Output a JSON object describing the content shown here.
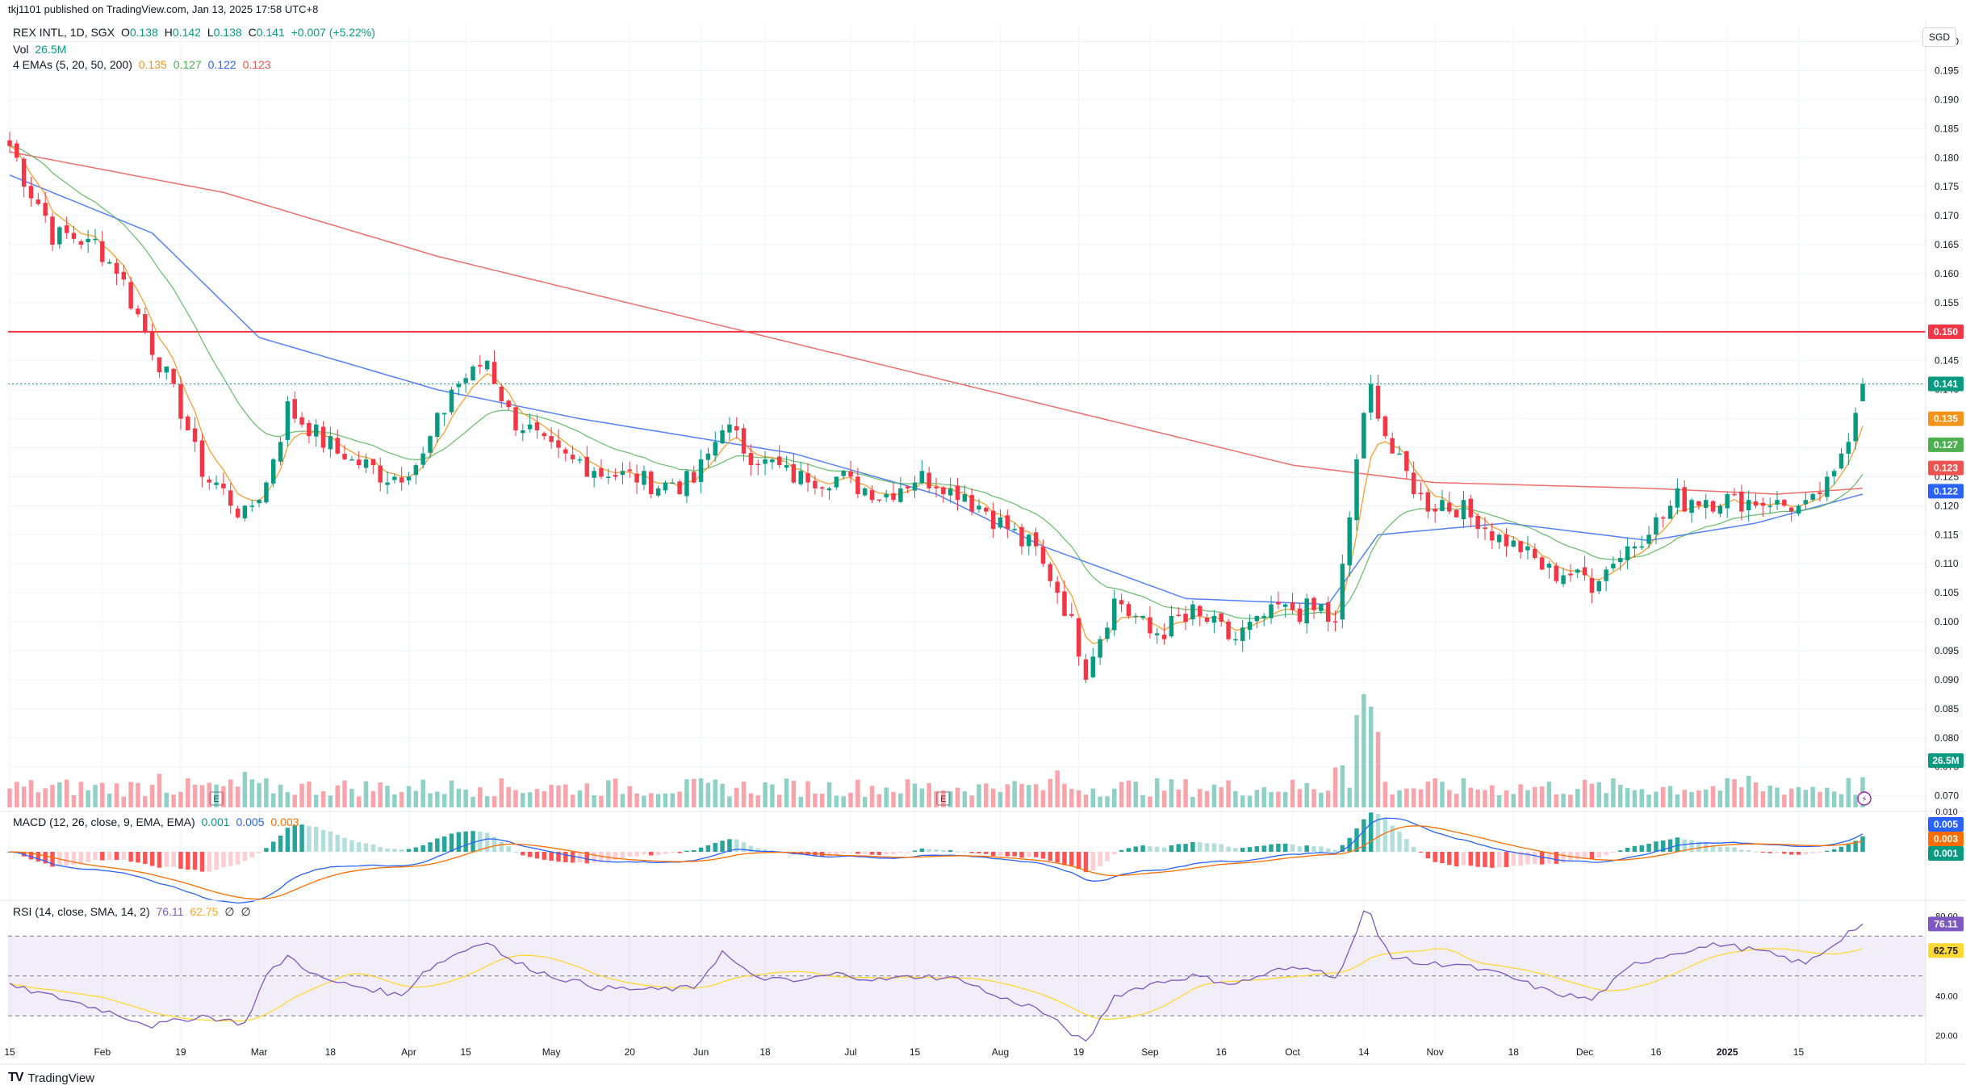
{
  "header": {
    "published": "tkj1101 published on TradingView.com, Jan 13, 2025 17:58 UTC+8",
    "symbol": "REX INTL, 1D, SGX",
    "o_label": "O",
    "o_value": "0.138",
    "h_label": "H",
    "h_value": "0.142",
    "l_label": "L",
    "l_value": "0.138",
    "c_label": "C",
    "c_value": "0.141",
    "change": "+0.007 (+5.22%)",
    "vol_label": "Vol",
    "vol_value": "26.5M",
    "ema_label": "4 EMAs (5, 20, 50, 200)",
    "ema_values": [
      "0.135",
      "0.127",
      "0.122",
      "0.123"
    ]
  },
  "currency": "SGD",
  "macd_title": "MACD (12, 26, close, 9, EMA, EMA)",
  "macd_values": [
    "0.001",
    "0.005",
    "0.003"
  ],
  "rsi_title": "RSI (14, close, SMA, 14, 2)",
  "rsi_values": [
    "76.11",
    "62.75",
    "∅",
    "∅"
  ],
  "footer": {
    "logo": "TV",
    "brand": "TradingView"
  },
  "colors": {
    "up": "#089981",
    "down": "#f23645",
    "ema5": "#f7931a",
    "ema20": "#4caf50",
    "ema50": "#2962ff",
    "ema200": "#ef5350",
    "rsi": "#7e57c2",
    "rsi_ma": "#fdd835",
    "hline": "#f23645"
  },
  "chart_data": [
    {
      "type": "candlestick",
      "title": "REX INTL, 1D, SGX",
      "ylim": [
        0.068,
        0.203
      ],
      "y_ticks": [
        "0.070",
        "0.075",
        "0.080",
        "0.085",
        "0.090",
        "0.095",
        "0.100",
        "0.105",
        "0.110",
        "0.115",
        "0.120",
        "0.125",
        "0.130",
        "0.135",
        "0.140",
        "0.145",
        "0.150",
        "0.155",
        "0.160",
        "0.165",
        "0.170",
        "0.175",
        "0.180",
        "0.185",
        "0.190",
        "0.195",
        "0.200"
      ],
      "x_ticks": [
        "15",
        "Feb",
        "19",
        "Mar",
        "18",
        "Apr",
        "15",
        "May",
        "20",
        "Jun",
        "18",
        "Jul",
        "15",
        "Aug",
        "19",
        "Sep",
        "16",
        "Oct",
        "14",
        "Nov",
        "18",
        "Dec",
        "16",
        "2025",
        "15"
      ],
      "horizontal_line": 0.15,
      "last_close_dotted": 0.141,
      "price_badges": [
        {
          "label": "0.150",
          "color": "#f23645"
        },
        {
          "label": "0.141",
          "color": "#089981"
        },
        {
          "label": "0.135",
          "color": "#f7931a"
        },
        {
          "label": "0.127",
          "color": "#4caf50"
        },
        {
          "label": "0.123",
          "color": "#ef5350"
        },
        {
          "label": "0.122",
          "color": "#2962ff"
        },
        {
          "label": "26.5M",
          "color": "#089981"
        }
      ],
      "close_anchors": [
        [
          0,
          0.182
        ],
        [
          6,
          0.167
        ],
        [
          12,
          0.165
        ],
        [
          15,
          0.161
        ],
        [
          20,
          0.147
        ],
        [
          24,
          0.137
        ],
        [
          27,
          0.126
        ],
        [
          33,
          0.118
        ],
        [
          36,
          0.124
        ],
        [
          39,
          0.137
        ],
        [
          44,
          0.131
        ],
        [
          49,
          0.127
        ],
        [
          54,
          0.125
        ],
        [
          58,
          0.128
        ],
        [
          62,
          0.14
        ],
        [
          67,
          0.145
        ],
        [
          70,
          0.136
        ],
        [
          76,
          0.129
        ],
        [
          83,
          0.126
        ],
        [
          90,
          0.124
        ],
        [
          96,
          0.124
        ],
        [
          100,
          0.134
        ],
        [
          104,
          0.129
        ],
        [
          110,
          0.125
        ],
        [
          116,
          0.125
        ],
        [
          122,
          0.122
        ],
        [
          128,
          0.125
        ],
        [
          134,
          0.122
        ],
        [
          138,
          0.118
        ],
        [
          144,
          0.112
        ],
        [
          148,
          0.103
        ],
        [
          151,
          0.092
        ],
        [
          155,
          0.104
        ],
        [
          160,
          0.098
        ],
        [
          166,
          0.101
        ],
        [
          172,
          0.097
        ],
        [
          178,
          0.102
        ],
        [
          184,
          0.102
        ],
        [
          186,
          0.099
        ],
        [
          189,
          0.128
        ],
        [
          191,
          0.14
        ],
        [
          194,
          0.129
        ],
        [
          198,
          0.121
        ],
        [
          203,
          0.12
        ],
        [
          210,
          0.114
        ],
        [
          216,
          0.109
        ],
        [
          222,
          0.107
        ],
        [
          228,
          0.114
        ],
        [
          234,
          0.121
        ],
        [
          240,
          0.121
        ],
        [
          246,
          0.121
        ],
        [
          252,
          0.119
        ],
        [
          256,
          0.125
        ],
        [
          258,
          0.133
        ],
        [
          260,
          0.141
        ]
      ],
      "ema200_anchors": [
        [
          0,
          0.181
        ],
        [
          30,
          0.174
        ],
        [
          60,
          0.163
        ],
        [
          100,
          0.151
        ],
        [
          140,
          0.139
        ],
        [
          180,
          0.127
        ],
        [
          200,
          0.124
        ],
        [
          230,
          0.123
        ],
        [
          248,
          0.122
        ],
        [
          260,
          0.123
        ]
      ],
      "ema50_anchors": [
        [
          0,
          0.177
        ],
        [
          20,
          0.167
        ],
        [
          35,
          0.149
        ],
        [
          60,
          0.14
        ],
        [
          80,
          0.135
        ],
        [
          110,
          0.129
        ],
        [
          130,
          0.122
        ],
        [
          145,
          0.113
        ],
        [
          165,
          0.104
        ],
        [
          185,
          0.103
        ],
        [
          192,
          0.115
        ],
        [
          210,
          0.117
        ],
        [
          230,
          0.114
        ],
        [
          245,
          0.117
        ],
        [
          260,
          0.122
        ]
      ]
    },
    {
      "type": "bar",
      "title": "Vol",
      "last_value": "26.5M",
      "spikes": [
        [
          0,
          0.45
        ],
        [
          21,
          0.8
        ],
        [
          33,
          0.85
        ],
        [
          66,
          0.48
        ],
        [
          140,
          0.55
        ],
        [
          147,
          0.88
        ],
        [
          186,
          0.95
        ],
        [
          187,
          1.0
        ],
        [
          189,
          2.2
        ],
        [
          190,
          2.7
        ],
        [
          191,
          2.4
        ],
        [
          192,
          1.8
        ],
        [
          244,
          0.75
        ],
        [
          258,
          0.7
        ],
        [
          260,
          0.72
        ]
      ]
    },
    {
      "type": "line",
      "title": "MACD (12, 26, close, 9, EMA, EMA)",
      "ylim": [
        -0.012,
        0.01
      ],
      "y_ticks": [
        "0.010",
        "0.000"
      ],
      "series": [
        {
          "name": "MACD"
        },
        {
          "name": "Signal"
        },
        {
          "name": "Histogram"
        }
      ]
    },
    {
      "type": "line",
      "title": "RSI (14, close, SMA, 14, 2)",
      "ylim": [
        13,
        88
      ],
      "y_ticks": [
        "20.00",
        "40.00",
        "80.00"
      ],
      "bands": [
        30,
        70
      ],
      "anchors": [
        [
          0,
          45
        ],
        [
          8,
          38
        ],
        [
          14,
          32
        ],
        [
          20,
          25
        ],
        [
          27,
          30
        ],
        [
          33,
          26
        ],
        [
          36,
          50
        ],
        [
          39,
          60
        ],
        [
          44,
          48
        ],
        [
          50,
          44
        ],
        [
          55,
          40
        ],
        [
          58,
          52
        ],
        [
          62,
          60
        ],
        [
          67,
          68
        ],
        [
          70,
          58
        ],
        [
          76,
          50
        ],
        [
          83,
          44
        ],
        [
          90,
          43
        ],
        [
          96,
          44
        ],
        [
          100,
          62
        ],
        [
          104,
          50
        ],
        [
          110,
          47
        ],
        [
          116,
          51
        ],
        [
          122,
          48
        ],
        [
          128,
          50
        ],
        [
          134,
          48
        ],
        [
          138,
          40
        ],
        [
          144,
          34
        ],
        [
          148,
          24
        ],
        [
          151,
          16
        ],
        [
          155,
          40
        ],
        [
          160,
          46
        ],
        [
          166,
          50
        ],
        [
          172,
          46
        ],
        [
          178,
          53
        ],
        [
          184,
          54
        ],
        [
          186,
          48
        ],
        [
          189,
          72
        ],
        [
          190,
          82
        ],
        [
          191,
          80
        ],
        [
          192,
          70
        ],
        [
          194,
          60
        ],
        [
          198,
          56
        ],
        [
          203,
          56
        ],
        [
          210,
          50
        ],
        [
          216,
          42
        ],
        [
          222,
          38
        ],
        [
          228,
          56
        ],
        [
          234,
          62
        ],
        [
          240,
          66
        ],
        [
          246,
          62
        ],
        [
          252,
          56
        ],
        [
          256,
          66
        ],
        [
          258,
          72
        ],
        [
          260,
          76
        ]
      ]
    }
  ]
}
